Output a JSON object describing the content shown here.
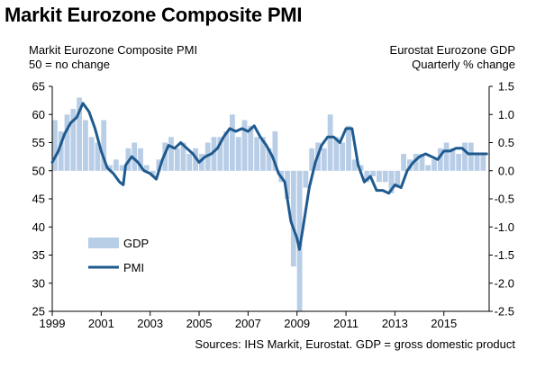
{
  "title": "Markit Eurozone Composite PMI",
  "left_axis_title": [
    "Markit Eurozone Composite PMI",
    "50 = no change"
  ],
  "right_axis_title": [
    "Eurostat Eurozone GDP",
    "Quarterly % change"
  ],
  "source": "Sources: IHS Markit, Eurostat. GDP = gross domestic product",
  "colors": {
    "gdp": "#b8cde6",
    "pmi": "#1f5a8f"
  },
  "chart_data": {
    "type": "bar+line",
    "x_ticks": [
      "1999",
      "2001",
      "2003",
      "2005",
      "2007",
      "2009",
      "2011",
      "2013",
      "2015"
    ],
    "xlim": [
      1999,
      2016.85
    ],
    "legend": [
      "GDP",
      "PMI"
    ],
    "legend_position": "left-middle",
    "grid": false,
    "series": [
      {
        "name": "GDP",
        "type": "bar",
        "axis": "right",
        "ylim": [
          -2.5,
          1.5
        ],
        "y_ticks": [
          "1.5",
          "1.0",
          "0.5",
          "0.0",
          "-0.5",
          "-1.0",
          "-1.5",
          "-2.0",
          "-2.5"
        ],
        "x": [
          1999.0,
          1999.25,
          1999.5,
          1999.75,
          2000.0,
          2000.25,
          2000.5,
          2000.75,
          2001.0,
          2001.25,
          2001.5,
          2001.75,
          2002.0,
          2002.25,
          2002.5,
          2002.75,
          2003.0,
          2003.25,
          2003.5,
          2003.75,
          2004.0,
          2004.25,
          2004.5,
          2004.75,
          2005.0,
          2005.25,
          2005.5,
          2005.75,
          2006.0,
          2006.25,
          2006.5,
          2006.75,
          2007.0,
          2007.25,
          2007.5,
          2007.75,
          2008.0,
          2008.25,
          2008.5,
          2008.75,
          2009.0,
          2009.25,
          2009.5,
          2009.75,
          2010.0,
          2010.25,
          2010.5,
          2010.75,
          2011.0,
          2011.25,
          2011.5,
          2011.75,
          2012.0,
          2012.25,
          2012.5,
          2012.75,
          2013.0,
          2013.25,
          2013.5,
          2013.75,
          2014.0,
          2014.25,
          2014.5,
          2014.75,
          2015.0,
          2015.25,
          2015.5,
          2015.75,
          2016.0,
          2016.25,
          2016.5
        ],
        "values": [
          0.9,
          0.7,
          1.0,
          1.1,
          1.3,
          0.9,
          0.6,
          0.5,
          0.9,
          0.1,
          0.2,
          0.1,
          0.4,
          0.5,
          0.4,
          0.1,
          -0.1,
          0.2,
          0.5,
          0.6,
          0.4,
          0.5,
          0.3,
          0.4,
          0.3,
          0.5,
          0.6,
          0.6,
          0.7,
          1.0,
          0.6,
          0.9,
          0.8,
          0.6,
          0.6,
          0.4,
          0.7,
          -0.2,
          -0.5,
          -1.7,
          -2.5,
          -0.3,
          0.4,
          0.5,
          0.4,
          1.0,
          0.6,
          0.5,
          0.8,
          0.2,
          0.1,
          -0.2,
          -0.1,
          -0.2,
          -0.2,
          -0.4,
          -0.3,
          0.3,
          0.2,
          0.3,
          0.3,
          0.1,
          0.2,
          0.4,
          0.5,
          0.4,
          0.3,
          0.5,
          0.5,
          0.3,
          0.3
        ]
      },
      {
        "name": "PMI",
        "type": "line",
        "axis": "left",
        "ylim": [
          25,
          65
        ],
        "y_ticks": [
          "65",
          "60",
          "55",
          "50",
          "45",
          "40",
          "35",
          "30",
          "25"
        ],
        "x": [
          1999.0,
          1999.25,
          1999.5,
          1999.75,
          2000.0,
          2000.25,
          2000.5,
          2000.75,
          2001.0,
          2001.25,
          2001.5,
          2001.75,
          2001.9,
          2002.0,
          2002.25,
          2002.5,
          2002.75,
          2003.0,
          2003.25,
          2003.5,
          2003.75,
          2004.0,
          2004.25,
          2004.5,
          2004.75,
          2005.0,
          2005.25,
          2005.5,
          2005.75,
          2006.0,
          2006.25,
          2006.5,
          2006.75,
          2007.0,
          2007.25,
          2007.5,
          2007.75,
          2008.0,
          2008.25,
          2008.5,
          2008.75,
          2009.0,
          2009.1,
          2009.25,
          2009.5,
          2009.75,
          2010.0,
          2010.25,
          2010.5,
          2010.75,
          2011.0,
          2011.25,
          2011.5,
          2011.75,
          2012.0,
          2012.25,
          2012.5,
          2012.75,
          2013.0,
          2013.25,
          2013.5,
          2013.75,
          2014.0,
          2014.25,
          2014.5,
          2014.75,
          2015.0,
          2015.25,
          2015.5,
          2015.75,
          2016.0,
          2016.25,
          2016.5,
          2016.75
        ],
        "values": [
          51.5,
          53.5,
          56.5,
          58.5,
          59.5,
          62.0,
          60.5,
          57.5,
          53.5,
          50.5,
          49.5,
          48.0,
          47.5,
          51.0,
          52.5,
          51.5,
          50.0,
          49.5,
          48.5,
          52.0,
          54.5,
          54.0,
          55.0,
          54.0,
          53.0,
          51.5,
          52.5,
          53.0,
          54.0,
          56.0,
          57.5,
          57.0,
          57.5,
          57.0,
          58.0,
          56.0,
          54.5,
          52.5,
          49.5,
          48.0,
          41.0,
          38.0,
          36.0,
          40.0,
          47.0,
          51.5,
          54.5,
          56.0,
          56.0,
          55.0,
          57.5,
          57.5,
          51.0,
          48.0,
          49.0,
          46.5,
          46.5,
          46.0,
          47.5,
          47.0,
          50.0,
          51.5,
          52.5,
          53.0,
          52.5,
          52.0,
          53.5,
          53.5,
          54.0,
          54.0,
          53.0,
          53.0,
          53.0,
          53.0
        ]
      }
    ]
  }
}
